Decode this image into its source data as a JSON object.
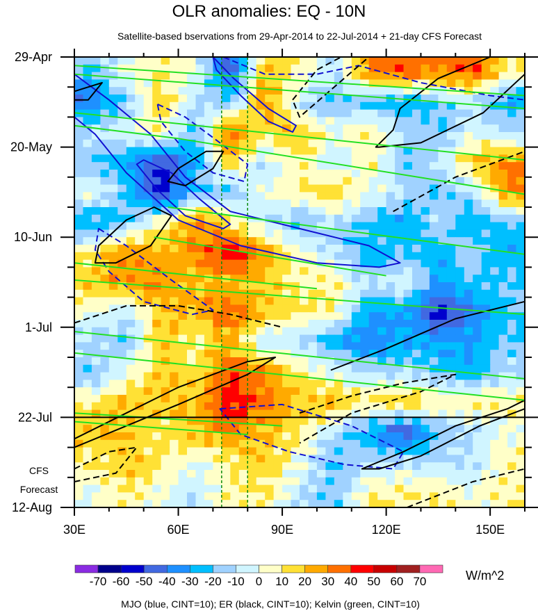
{
  "chart_data": {
    "type": "heatmap",
    "title": "OLR anomalies: EQ - 10N",
    "subtitle": "Satellite-based bservations from 29-Apr-2014 to 22-Jul-2014 + 21-day CFS Forecast",
    "xlabel": "",
    "ylabel": "",
    "xlim": [
      30,
      160
    ],
    "ylim_days": [
      0,
      105
    ],
    "x_ticks": [
      {
        "v": 30,
        "label": "30E"
      },
      {
        "v": 60,
        "label": "60E"
      },
      {
        "v": 90,
        "label": "90E"
      },
      {
        "v": 120,
        "label": "120E"
      },
      {
        "v": 150,
        "label": "150E"
      }
    ],
    "y_ticks": [
      {
        "v": 0,
        "label": "29-Apr"
      },
      {
        "v": 21,
        "label": "20-May"
      },
      {
        "v": 42,
        "label": "10-Jun"
      },
      {
        "v": 63,
        "label": "1-Jul"
      },
      {
        "v": 84,
        "label": "22-Jul"
      },
      {
        "v": 105,
        "label": "12-Aug"
      }
    ],
    "forecast_label": [
      "CFS",
      "Forecast"
    ],
    "forecast_start_day": 84,
    "reference_lons": [
      72.5,
      80
    ],
    "grid_lons": [
      35,
      45,
      55,
      65,
      75,
      85,
      95,
      105,
      115,
      125,
      135,
      145,
      155
    ],
    "grid_days": [
      3.5,
      10.5,
      17.5,
      24.5,
      31.5,
      38.5,
      45.5,
      52.5,
      59.5,
      66.5,
      73.5,
      80.5,
      87.5,
      94.5,
      101.5
    ],
    "values": [
      [
        -20,
        0,
        10,
        0,
        -50,
        20,
        10,
        -10,
        30,
        40,
        30,
        40,
        10
      ],
      [
        -40,
        -20,
        20,
        -10,
        -20,
        30,
        -10,
        -20,
        -20,
        -30,
        -20,
        -10,
        -30
      ],
      [
        -10,
        0,
        10,
        -20,
        40,
        10,
        20,
        0,
        10,
        -10,
        -20,
        0,
        -10
      ],
      [
        -20,
        -30,
        -50,
        -30,
        20,
        -10,
        10,
        -10,
        10,
        -20,
        -10,
        20,
        30
      ],
      [
        0,
        -20,
        -60,
        -20,
        -20,
        0,
        10,
        20,
        0,
        -10,
        -20,
        -10,
        30
      ],
      [
        -30,
        -20,
        10,
        30,
        10,
        -10,
        -20,
        -10,
        -20,
        -30,
        -10,
        -30,
        -20
      ],
      [
        10,
        30,
        20,
        30,
        50,
        30,
        0,
        -10,
        -30,
        -20,
        -30,
        -10,
        -30
      ],
      [
        20,
        30,
        30,
        20,
        20,
        20,
        10,
        10,
        -10,
        0,
        -30,
        -20,
        -20
      ],
      [
        0,
        -10,
        20,
        20,
        40,
        20,
        10,
        10,
        -30,
        -30,
        -60,
        -40,
        -20
      ],
      [
        -10,
        -20,
        20,
        10,
        20,
        -10,
        -10,
        -30,
        -40,
        -30,
        -30,
        -30,
        -20
      ],
      [
        -20,
        0,
        20,
        10,
        40,
        30,
        10,
        0,
        -10,
        -10,
        -20,
        -30,
        -10
      ],
      [
        10,
        20,
        20,
        20,
        50,
        30,
        20,
        20,
        10,
        20,
        10,
        10,
        10
      ],
      [
        20,
        20,
        10,
        20,
        30,
        20,
        10,
        -10,
        -30,
        -50,
        -20,
        -10,
        0
      ],
      [
        10,
        20,
        10,
        0,
        10,
        20,
        0,
        -20,
        -10,
        -10,
        -10,
        -10,
        10
      ],
      [
        0,
        10,
        0,
        -10,
        10,
        10,
        -10,
        -20,
        10,
        10,
        10,
        0,
        10
      ]
    ],
    "colorbar": {
      "levels": [
        "-70",
        "-60",
        "-50",
        "-40",
        "-30",
        "-20",
        "-10",
        "0",
        "10",
        "20",
        "30",
        "40",
        "50",
        "60",
        "70"
      ],
      "colors": [
        "#8a2be2",
        "#00008b",
        "#0000cd",
        "#4169e1",
        "#1e90ff",
        "#00bfff",
        "#a0d2ff",
        "#d0f5ff",
        "#ffffc8",
        "#ffe135",
        "#ffaa00",
        "#ff7000",
        "#ff0000",
        "#c80000",
        "#a02020",
        "#ff69b4"
      ],
      "units": "W/m^2"
    },
    "legend_note": "MJO (blue, CINT=10); ER (black, CINT=10); Kelvin (green, CINT=10)",
    "contours": [
      {
        "wave": "MJO",
        "color": "#1010d0",
        "dash": false,
        "closed": true,
        "pts": [
          [
            70,
            0
          ],
          [
            76,
            5
          ],
          [
            86,
            12
          ],
          [
            94,
            16
          ],
          [
            93,
            17.5
          ],
          [
            86,
            15
          ],
          [
            78,
            9
          ],
          [
            71,
            3
          ]
        ]
      },
      {
        "wave": "MJO",
        "color": "#1010d0",
        "dash": false,
        "closed": true,
        "pts": [
          [
            30,
            4
          ],
          [
            40,
            10
          ],
          [
            52,
            18
          ],
          [
            62,
            28
          ],
          [
            75,
            36
          ],
          [
            95,
            40
          ],
          [
            115,
            44
          ],
          [
            124,
            48
          ],
          [
            118,
            49
          ],
          [
            100,
            48
          ],
          [
            78,
            44
          ],
          [
            60,
            38
          ],
          [
            45,
            27
          ],
          [
            36,
            18
          ],
          [
            30,
            14
          ]
        ]
      },
      {
        "wave": "MJO",
        "color": "#1010d0",
        "dash": false,
        "closed": true,
        "pts": [
          [
            50,
            24
          ],
          [
            58,
            27
          ],
          [
            66,
            33
          ],
          [
            75,
            39
          ],
          [
            73,
            40
          ],
          [
            62,
            37
          ],
          [
            54,
            31
          ],
          [
            48,
            25
          ]
        ]
      },
      {
        "wave": "MJO",
        "color": "#1010d0",
        "dash": true,
        "closed": true,
        "pts": [
          [
            54,
            11
          ],
          [
            62,
            14
          ],
          [
            72,
            20
          ],
          [
            80,
            25
          ],
          [
            79,
            29
          ],
          [
            70,
            27
          ],
          [
            62,
            22
          ],
          [
            55,
            15
          ]
        ]
      },
      {
        "wave": "MJO",
        "color": "#1010d0",
        "dash": true,
        "closed": true,
        "pts": [
          [
            37,
            40
          ],
          [
            45,
            44
          ],
          [
            58,
            52
          ],
          [
            70,
            59
          ],
          [
            64,
            60
          ],
          [
            50,
            57
          ],
          [
            40,
            50
          ],
          [
            36,
            45
          ]
        ]
      },
      {
        "wave": "MJO",
        "color": "#1010d0",
        "dash": true,
        "closed": false,
        "pts": [
          [
            73,
            0
          ],
          [
            85,
            4
          ],
          [
            100,
            4
          ],
          [
            112,
            2
          ],
          [
            130,
            6
          ],
          [
            150,
            9
          ],
          [
            160,
            10
          ]
        ]
      },
      {
        "wave": "MJO",
        "color": "#1010d0",
        "dash": true,
        "closed": true,
        "pts": [
          [
            72,
            82
          ],
          [
            90,
            81
          ],
          [
            110,
            86
          ],
          [
            125,
            92
          ],
          [
            122,
            96
          ],
          [
            108,
            95
          ],
          [
            92,
            92
          ],
          [
            78,
            88
          ]
        ]
      },
      {
        "wave": "ER",
        "color": "#000000",
        "dash": false,
        "closed": true,
        "pts": [
          [
            30,
            8
          ],
          [
            38,
            6
          ],
          [
            34,
            10
          ],
          [
            30,
            10
          ]
        ]
      },
      {
        "wave": "ER",
        "color": "#000000",
        "dash": false,
        "closed": true,
        "pts": [
          [
            117,
            21
          ],
          [
            122,
            17
          ],
          [
            124,
            12
          ],
          [
            135,
            5
          ],
          [
            150,
            0
          ],
          [
            160,
            0
          ],
          [
            160,
            4
          ],
          [
            148,
            13
          ],
          [
            130,
            20
          ],
          [
            118,
            21
          ]
        ]
      },
      {
        "wave": "ER",
        "color": "#000000",
        "dash": false,
        "closed": true,
        "pts": [
          [
            37,
            44
          ],
          [
            45,
            38
          ],
          [
            53,
            35
          ],
          [
            58,
            37
          ],
          [
            52,
            44
          ],
          [
            42,
            48
          ],
          [
            36,
            48
          ]
        ]
      },
      {
        "wave": "ER",
        "color": "#000000",
        "dash": false,
        "closed": true,
        "pts": [
          [
            60,
            26
          ],
          [
            68,
            22
          ],
          [
            73,
            22
          ],
          [
            70,
            26
          ],
          [
            62,
            30
          ],
          [
            57,
            29
          ]
        ]
      },
      {
        "wave": "ER",
        "color": "#000000",
        "dash": false,
        "closed": false,
        "pts": [
          [
            30,
            89
          ],
          [
            45,
            83
          ],
          [
            60,
            77
          ],
          [
            80,
            71
          ],
          [
            88,
            70
          ],
          [
            80,
            74
          ],
          [
            60,
            81
          ],
          [
            45,
            86
          ],
          [
            30,
            91
          ]
        ]
      },
      {
        "wave": "ER",
        "color": "#000000",
        "dash": false,
        "closed": true,
        "pts": [
          [
            113,
            96
          ],
          [
            125,
            92
          ],
          [
            140,
            86
          ],
          [
            155,
            82
          ],
          [
            160,
            80
          ],
          [
            160,
            82
          ],
          [
            147,
            86
          ],
          [
            130,
            93
          ],
          [
            118,
            96
          ]
        ]
      },
      {
        "wave": "ER",
        "color": "#000000",
        "dash": false,
        "closed": false,
        "pts": [
          [
            104,
            73
          ],
          [
            120,
            68
          ],
          [
            140,
            61
          ],
          [
            160,
            57
          ]
        ]
      },
      {
        "wave": "ER",
        "color": "#000000",
        "dash": true,
        "closed": false,
        "pts": [
          [
            30,
            62
          ],
          [
            45,
            58
          ],
          [
            60,
            58
          ],
          [
            75,
            60
          ],
          [
            90,
            63
          ]
        ]
      },
      {
        "wave": "ER",
        "color": "#000000",
        "dash": true,
        "closed": true,
        "pts": [
          [
            30,
            96
          ],
          [
            40,
            92
          ],
          [
            48,
            91
          ],
          [
            42,
            97
          ],
          [
            30,
            99
          ]
        ]
      },
      {
        "wave": "ER",
        "color": "#000000",
        "dash": true,
        "closed": false,
        "pts": [
          [
            95,
            83
          ],
          [
            110,
            79
          ],
          [
            125,
            76
          ],
          [
            140,
            74
          ],
          [
            130,
            78
          ],
          [
            110,
            83
          ],
          [
            95,
            90
          ]
        ]
      },
      {
        "wave": "ER",
        "color": "#000000",
        "dash": true,
        "closed": true,
        "pts": [
          [
            93,
            10
          ],
          [
            100,
            3
          ],
          [
            107,
            0
          ],
          [
            115,
            0
          ],
          [
            105,
            7
          ],
          [
            95,
            14
          ]
        ]
      },
      {
        "wave": "ER",
        "color": "#000000",
        "dash": true,
        "closed": false,
        "pts": [
          [
            122,
            36
          ],
          [
            140,
            28
          ],
          [
            160,
            22
          ]
        ]
      },
      {
        "wave": "ER",
        "color": "#000000",
        "dash": true,
        "closed": false,
        "pts": [
          [
            126,
            105
          ],
          [
            145,
            99
          ],
          [
            160,
            96
          ]
        ]
      },
      {
        "wave": "Kelvin",
        "color": "#22e022",
        "dash": false,
        "closed": false,
        "pts": [
          [
            30,
            2
          ],
          [
            160,
            9
          ]
        ]
      },
      {
        "wave": "Kelvin",
        "color": "#22e022",
        "dash": false,
        "closed": false,
        "pts": [
          [
            30,
            4
          ],
          [
            160,
            12
          ]
        ]
      },
      {
        "wave": "Kelvin",
        "color": "#22e022",
        "dash": false,
        "closed": false,
        "pts": [
          [
            30,
            13
          ],
          [
            160,
            24
          ]
        ]
      },
      {
        "wave": "Kelvin",
        "color": "#22e022",
        "dash": false,
        "closed": false,
        "pts": [
          [
            60,
            19
          ],
          [
            160,
            32
          ]
        ]
      },
      {
        "wave": "Kelvin",
        "color": "#22e022",
        "dash": false,
        "closed": false,
        "pts": [
          [
            30,
            16
          ],
          [
            60,
            19
          ]
        ]
      },
      {
        "wave": "Kelvin",
        "color": "#22e022",
        "dash": false,
        "closed": false,
        "pts": [
          [
            57,
            35
          ],
          [
            160,
            46
          ]
        ]
      },
      {
        "wave": "Kelvin",
        "color": "#22e022",
        "dash": false,
        "closed": false,
        "pts": [
          [
            53,
            42
          ],
          [
            120,
            51
          ]
        ]
      },
      {
        "wave": "Kelvin",
        "color": "#22e022",
        "dash": false,
        "closed": false,
        "pts": [
          [
            30,
            48
          ],
          [
            100,
            54
          ]
        ]
      },
      {
        "wave": "Kelvin",
        "color": "#22e022",
        "dash": false,
        "closed": false,
        "pts": [
          [
            30,
            52
          ],
          [
            160,
            60
          ]
        ]
      },
      {
        "wave": "Kelvin",
        "color": "#22e022",
        "dash": false,
        "closed": false,
        "pts": [
          [
            30,
            64
          ],
          [
            160,
            75
          ]
        ]
      },
      {
        "wave": "Kelvin",
        "color": "#22e022",
        "dash": false,
        "closed": false,
        "pts": [
          [
            30,
            69
          ],
          [
            160,
            80
          ]
        ]
      },
      {
        "wave": "Kelvin",
        "color": "#22e022",
        "dash": false,
        "closed": false,
        "pts": [
          [
            30,
            83
          ],
          [
            90,
            86
          ]
        ]
      },
      {
        "wave": "Kelvin",
        "color": "#22e022",
        "dash": false,
        "closed": false,
        "pts": [
          [
            30,
            85
          ],
          [
            80,
            88
          ]
        ]
      }
    ]
  }
}
